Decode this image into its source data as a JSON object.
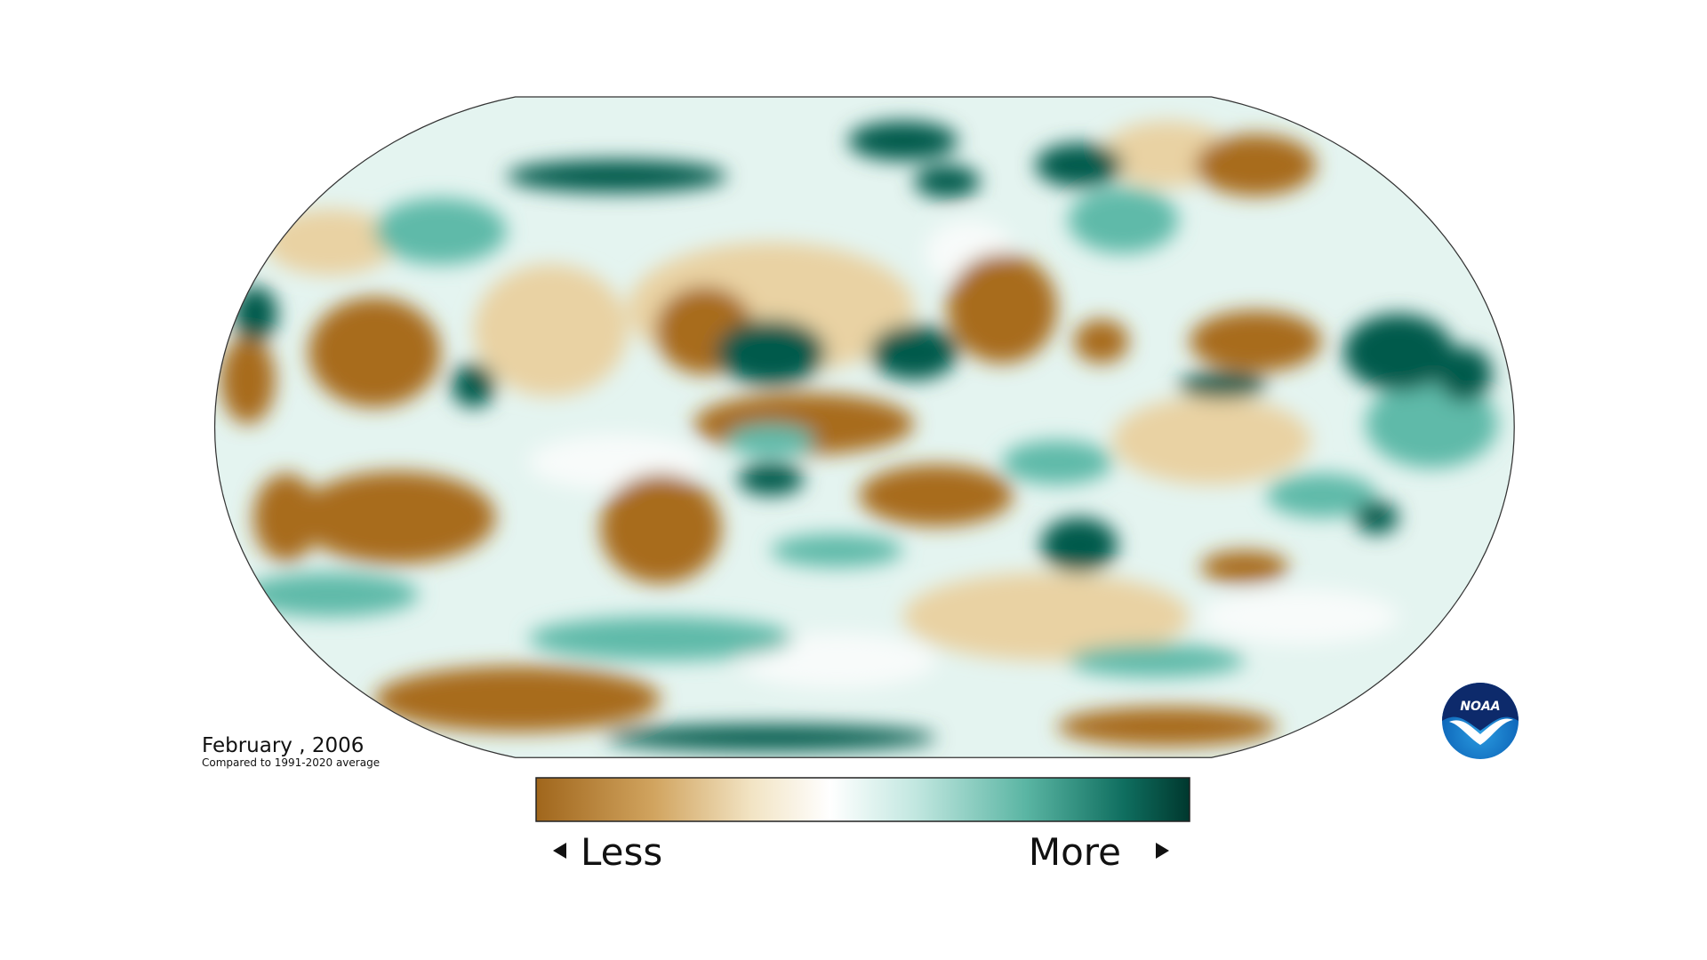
{
  "map": {
    "date": "February , 2006",
    "baseline_note": "Compared to 1991-2020 average"
  },
  "legend": {
    "low_label": "Less",
    "high_label": "More"
  },
  "logo": {
    "text": "NOAA"
  }
}
